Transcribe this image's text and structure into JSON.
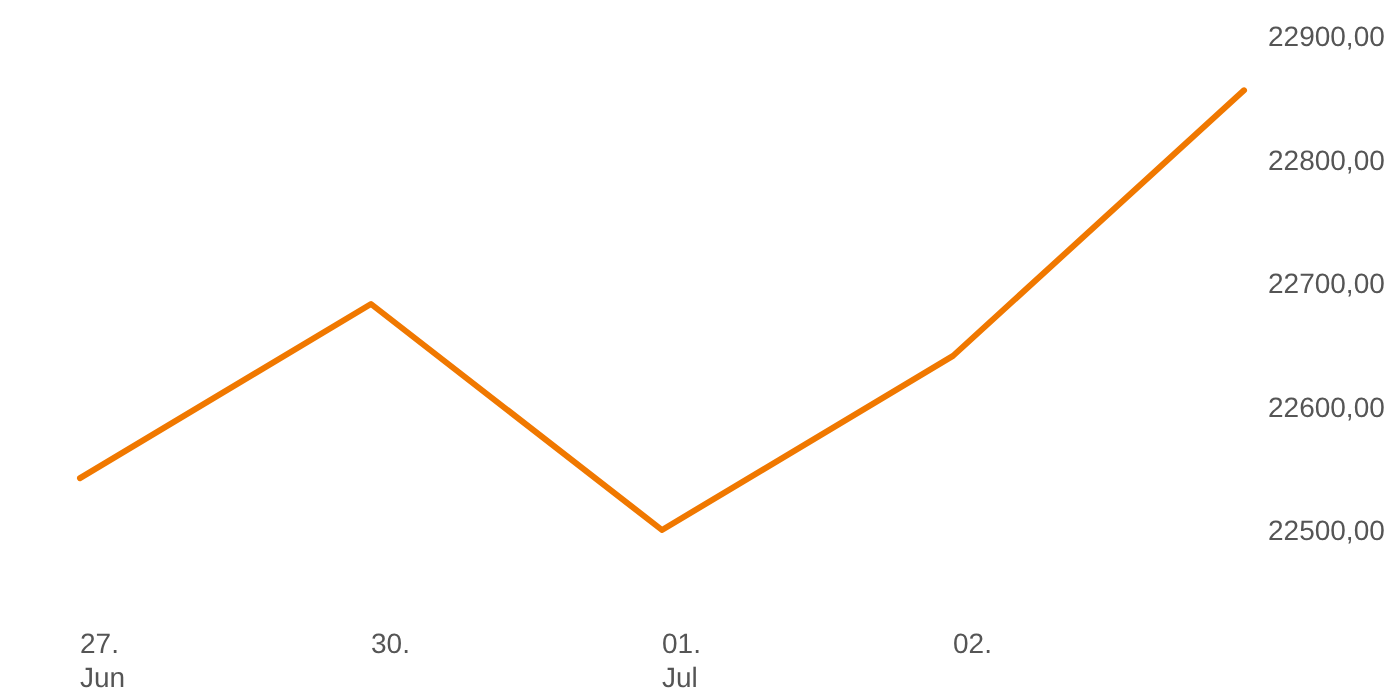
{
  "chart_data": {
    "type": "line",
    "categories": [
      "27.\nJun",
      "30.",
      "01.\nJul",
      "02.",
      null
    ],
    "ylim": [
      22500,
      22900
    ],
    "series": [
      {
        "color": "#f07800",
        "values": [
          22542,
          22683,
          22500,
          22641,
          22856
        ]
      }
    ],
    "yticks": [
      {
        "value": 22500,
        "label": "22500,00"
      },
      {
        "value": 22600,
        "label": "22600,00"
      },
      {
        "value": 22700,
        "label": "22700,00"
      },
      {
        "value": 22800,
        "label": "22800,00"
      },
      {
        "value": 22900,
        "label": "22900,00"
      }
    ],
    "grid": false,
    "marker": "none",
    "line_style": "solid"
  }
}
